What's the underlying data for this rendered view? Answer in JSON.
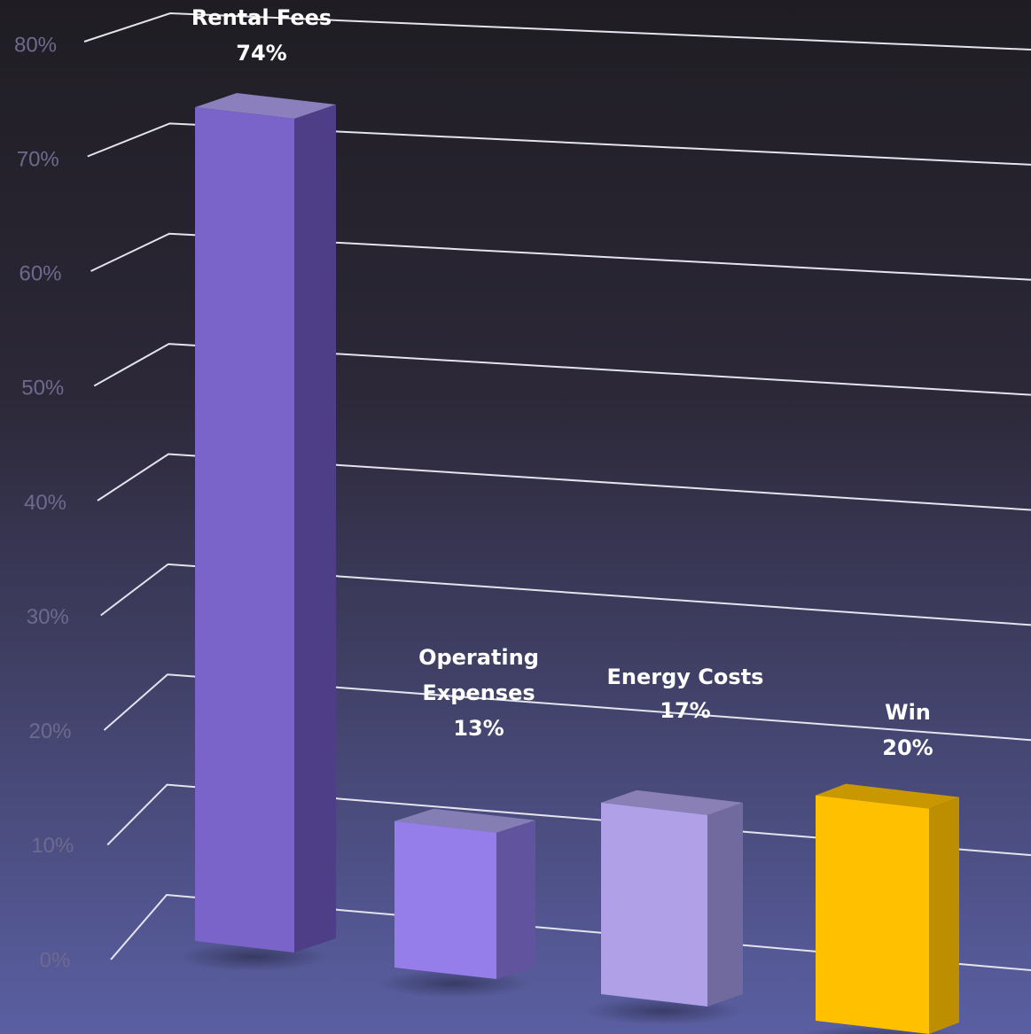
{
  "chart_data": {
    "type": "bar",
    "style": "3d-column",
    "categories": [
      "Rental Fees",
      "Operating Expenses",
      "Energy Costs",
      "Win"
    ],
    "values": [
      74,
      13,
      17,
      20
    ],
    "data_labels": [
      {
        "lines": [
          "Rental Fees",
          "74%"
        ]
      },
      {
        "lines": [
          "Operating",
          "Expenses",
          "13%"
        ]
      },
      {
        "lines": [
          "Energy Costs",
          "17%"
        ]
      },
      {
        "lines": [
          "Win",
          "20%"
        ]
      }
    ],
    "y_ticks": [
      "0%",
      "10%",
      "20%",
      "30%",
      "40%",
      "50%",
      "60%",
      "70%",
      "80%"
    ],
    "ylim": [
      0,
      80
    ],
    "grid": true,
    "legend": "none",
    "colors": {
      "background_top": "#1f1d23",
      "background_bottom": "#5a5fa2",
      "bar_fronts": [
        "#7a64c9",
        "#967eea",
        "#afa0e8",
        "#ffc000"
      ],
      "bar_sides": [
        "#4e3e88",
        "#62539f",
        "#716a9f",
        "#bd8f00"
      ],
      "bar_tops": [
        "#8b7fbd",
        "#857eb5",
        "#8a80b5",
        "#c99800"
      ]
    }
  }
}
